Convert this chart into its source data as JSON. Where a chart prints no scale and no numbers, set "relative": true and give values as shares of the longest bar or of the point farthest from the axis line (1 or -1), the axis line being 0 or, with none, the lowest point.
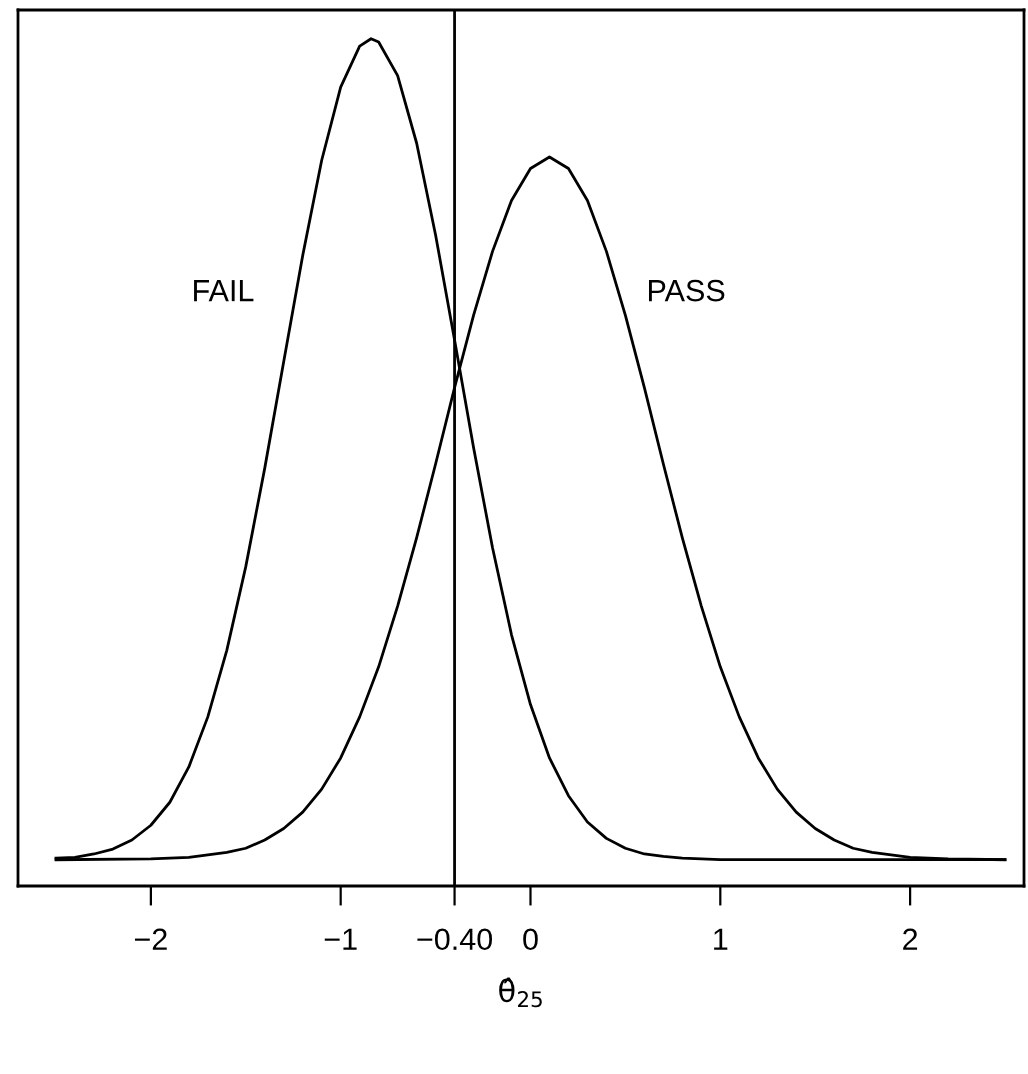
{
  "chart_data": {
    "type": "line",
    "relative": true,
    "xlabel": "θ̂$_{25}$",
    "xlim": [
      -2.7,
      2.6
    ],
    "xticks": [
      {
        "value": -2,
        "label": "−2"
      },
      {
        "value": -1,
        "label": "−1"
      },
      {
        "value": -0.4,
        "label": "−0.40"
      },
      0,
      1,
      2
    ],
    "tick_labels": "x",
    "grid": false,
    "legend": false,
    "marker": "none",
    "line_style": "solid",
    "ref_lines": [
      {
        "axis": "x",
        "value": -0.4,
        "color": "#000000"
      }
    ],
    "series": [
      {
        "name": "FAIL",
        "color": "#000000",
        "x": [
          -2.5,
          -2.4,
          -2.3,
          -2.2,
          -2.1,
          -2.0,
          -1.9,
          -1.8,
          -1.7,
          -1.6,
          -1.5,
          -1.4,
          -1.3,
          -1.2,
          -1.1,
          -1.0,
          -0.9,
          -0.84,
          -0.8,
          -0.7,
          -0.6,
          -0.5,
          -0.4,
          -0.3,
          -0.2,
          -0.1,
          0.0,
          0.1,
          0.2,
          0.3,
          0.4,
          0.5,
          0.6,
          0.7,
          0.8,
          0.9,
          1.0,
          1.5,
          2.0,
          2.5
        ],
        "values": [
          0.002,
          0.003,
          0.007,
          0.013,
          0.024,
          0.042,
          0.07,
          0.113,
          0.174,
          0.255,
          0.357,
          0.477,
          0.607,
          0.736,
          0.852,
          0.941,
          0.991,
          1.0,
          0.996,
          0.955,
          0.873,
          0.761,
          0.633,
          0.502,
          0.38,
          0.274,
          0.189,
          0.124,
          0.078,
          0.046,
          0.026,
          0.014,
          0.007,
          0.004,
          0.002,
          0.001,
          0.0,
          0.0,
          0.0,
          0.0
        ]
      },
      {
        "name": "PASS",
        "color": "#000000",
        "x": [
          -2.5,
          -2.0,
          -1.8,
          -1.6,
          -1.5,
          -1.4,
          -1.3,
          -1.2,
          -1.1,
          -1.0,
          -0.9,
          -0.8,
          -0.7,
          -0.6,
          -0.5,
          -0.4,
          -0.3,
          -0.2,
          -0.1,
          0.0,
          0.1,
          0.2,
          0.3,
          0.4,
          0.5,
          0.6,
          0.7,
          0.8,
          0.9,
          1.0,
          1.1,
          1.2,
          1.3,
          1.4,
          1.5,
          1.6,
          1.7,
          1.8,
          2.0,
          2.2,
          2.5
        ],
        "values": [
          0.0,
          0.001,
          0.003,
          0.009,
          0.014,
          0.024,
          0.038,
          0.058,
          0.086,
          0.124,
          0.174,
          0.235,
          0.309,
          0.392,
          0.482,
          0.575,
          0.663,
          0.741,
          0.803,
          0.842,
          0.856,
          0.842,
          0.803,
          0.741,
          0.663,
          0.575,
          0.482,
          0.392,
          0.309,
          0.235,
          0.174,
          0.124,
          0.086,
          0.058,
          0.038,
          0.024,
          0.014,
          0.009,
          0.003,
          0.001,
          0.0
        ]
      }
    ]
  }
}
